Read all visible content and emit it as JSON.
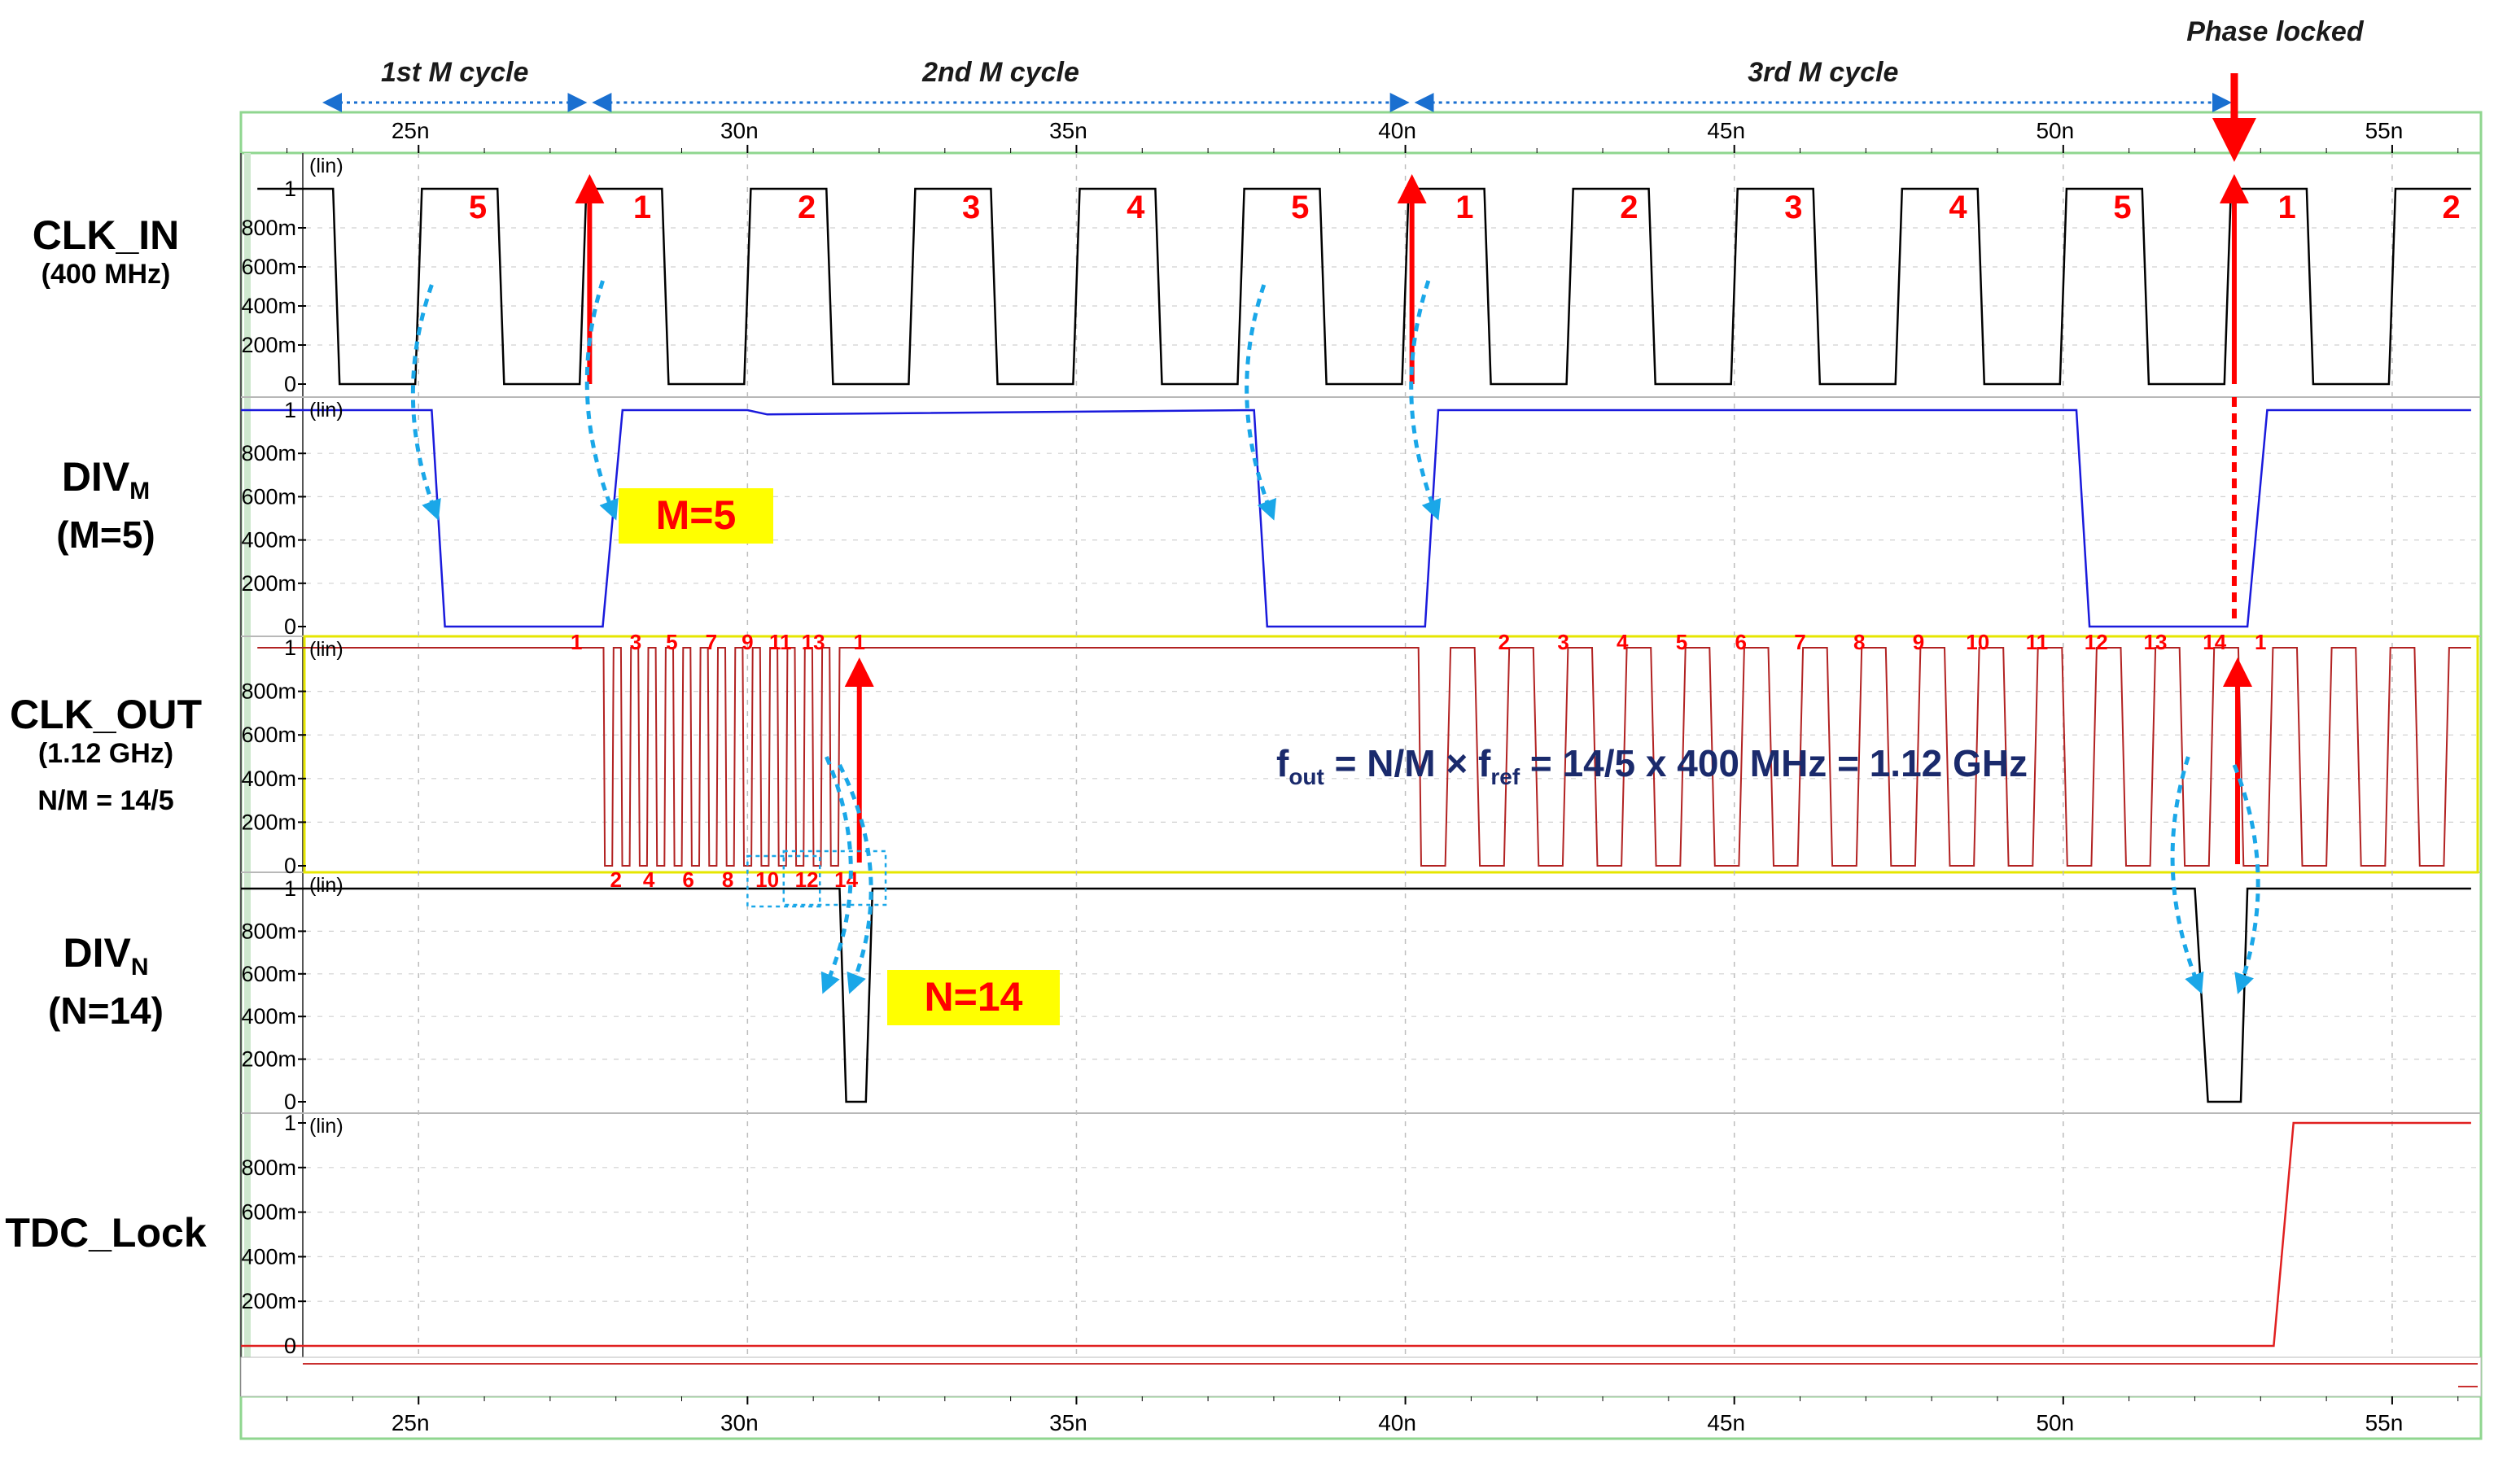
{
  "chart_data": {
    "type": "line",
    "x_unit": "ns",
    "xlim": [
      22.3,
      56.3
    ],
    "x_ticks": [
      25,
      30,
      35,
      40,
      45,
      50,
      55
    ],
    "x_tick_labels": [
      "25n",
      "30n",
      "35n",
      "40n",
      "45n",
      "50n",
      "55n"
    ],
    "y_ticks": [
      0,
      0.2,
      0.4,
      0.6,
      0.8,
      1.0
    ],
    "y_tick_labels": [
      "0",
      "200m",
      "400m",
      "600m",
      "800m",
      "1"
    ],
    "y_scale_tag": "(lin)",
    "grid": true,
    "colors": {
      "clk_in": "#000000",
      "div_m": "#1a1adc",
      "clk_out": "#b22222",
      "div_n": "#000000",
      "tdc_lock": "#e02020",
      "annotation_red": "#ff0000",
      "annotation_blue": "#1aa7e8",
      "cycle_arrow": "#1a6fd0",
      "highlight": "#ffff00",
      "formula": "#1a2a6c",
      "phase_locked": "#1a6fd0",
      "clk_out_border": "#e6e600"
    },
    "signals": [
      {
        "key": "clk_in",
        "name": "CLK_IN",
        "sub": "(400 MHz)",
        "sub2": ""
      },
      {
        "key": "div_m",
        "name": "DIV",
        "subscript": "M",
        "sub": "(M=5)",
        "sub2": ""
      },
      {
        "key": "clk_out",
        "name": "CLK_OUT",
        "sub": "(1.12 GHz)",
        "sub2": "N/M = 14/5"
      },
      {
        "key": "div_n",
        "name": "DIV",
        "subscript": "N",
        "sub": "(N=14)",
        "sub2": ""
      },
      {
        "key": "tdc_lock",
        "name": "TDC_Lock",
        "sub": "",
        "sub2": ""
      }
    ],
    "clk_in": {
      "period_ns": 2.5,
      "first_rise_ns": 25.0,
      "high_ns": 1.25,
      "low": 0.0,
      "high": 1.0
    },
    "div_m": {
      "points": [
        [
          22.3,
          1.0
        ],
        [
          25.2,
          1.0
        ],
        [
          25.4,
          0.0
        ],
        [
          27.8,
          0.0
        ],
        [
          28.1,
          1.0
        ],
        [
          30.0,
          1.0
        ],
        [
          30.3,
          0.98
        ],
        [
          37.7,
          1.0
        ],
        [
          37.9,
          0.0
        ],
        [
          40.3,
          0.0
        ],
        [
          40.5,
          1.0
        ],
        [
          50.2,
          1.0
        ],
        [
          50.4,
          0.0
        ],
        [
          52.8,
          0.0
        ],
        [
          53.1,
          1.0
        ],
        [
          56.2,
          1.0
        ]
      ]
    },
    "clk_out": {
      "burst1": {
        "start_ns": 27.7,
        "end_ns": 31.4,
        "period_ns": 0.2643
      },
      "idle_high_ns": [
        31.4,
        40.2
      ],
      "burst2": {
        "start_ns": 40.2,
        "end_ns": 56.2,
        "period_ns": 0.8929
      },
      "pre_high_ns": [
        22.3,
        27.7
      ]
    },
    "div_n": {
      "points": [
        [
          22.3,
          1.0
        ],
        [
          31.4,
          1.0
        ],
        [
          31.5,
          0.0
        ],
        [
          31.8,
          0.0
        ],
        [
          31.9,
          1.0
        ],
        [
          52.0,
          1.0
        ],
        [
          52.2,
          0.0
        ],
        [
          52.7,
          0.0
        ],
        [
          52.8,
          1.0
        ],
        [
          56.2,
          1.0
        ]
      ]
    },
    "tdc_lock": {
      "points": [
        [
          22.3,
          0.0
        ],
        [
          53.2,
          0.0
        ],
        [
          53.5,
          1.0
        ],
        [
          56.2,
          1.0
        ]
      ]
    },
    "clk_in_counts": [
      {
        "t": 25.9,
        "text": "5"
      },
      {
        "t": 28.4,
        "text": "1"
      },
      {
        "t": 30.9,
        "text": "2"
      },
      {
        "t": 33.4,
        "text": "3"
      },
      {
        "t": 35.9,
        "text": "4"
      },
      {
        "t": 38.4,
        "text": "5"
      },
      {
        "t": 40.9,
        "text": "1"
      },
      {
        "t": 43.4,
        "text": "2"
      },
      {
        "t": 45.9,
        "text": "3"
      },
      {
        "t": 48.4,
        "text": "4"
      },
      {
        "t": 50.9,
        "text": "5"
      },
      {
        "t": 53.4,
        "text": "1"
      },
      {
        "t": 55.9,
        "text": "2"
      }
    ],
    "clk_out_counts_top": [
      {
        "t": 27.4,
        "text": "1"
      },
      {
        "t": 28.3,
        "text": "3"
      },
      {
        "t": 28.85,
        "text": "5"
      },
      {
        "t": 29.45,
        "text": "7"
      },
      {
        "t": 30.0,
        "text": "9"
      },
      {
        "t": 30.5,
        "text": "11"
      },
      {
        "t": 31.0,
        "text": "13"
      },
      {
        "t": 31.7,
        "text": "1"
      },
      {
        "t": 41.5,
        "text": "2"
      },
      {
        "t": 42.4,
        "text": "3"
      },
      {
        "t": 43.3,
        "text": "4"
      },
      {
        "t": 44.2,
        "text": "5"
      },
      {
        "t": 45.1,
        "text": "6"
      },
      {
        "t": 46.0,
        "text": "7"
      },
      {
        "t": 46.9,
        "text": "8"
      },
      {
        "t": 47.8,
        "text": "9"
      },
      {
        "t": 48.7,
        "text": "10"
      },
      {
        "t": 49.6,
        "text": "11"
      },
      {
        "t": 50.5,
        "text": "12"
      },
      {
        "t": 51.4,
        "text": "13"
      },
      {
        "t": 52.3,
        "text": "14"
      },
      {
        "t": 53.0,
        "text": "1"
      }
    ],
    "clk_out_counts_bottom": [
      {
        "t": 28.0,
        "text": "2"
      },
      {
        "t": 28.5,
        "text": "4"
      },
      {
        "t": 29.1,
        "text": "6"
      },
      {
        "t": 29.7,
        "text": "8"
      },
      {
        "t": 30.3,
        "text": "10"
      },
      {
        "t": 30.9,
        "text": "12"
      },
      {
        "t": 31.5,
        "text": "14"
      }
    ],
    "cycle_markers": [
      {
        "from": 23.5,
        "to": 27.6,
        "label": "1st M cycle"
      },
      {
        "from": 27.6,
        "to": 40.1,
        "label": "2nd M cycle"
      },
      {
        "from": 40.1,
        "to": 52.6,
        "label": "3rd M cycle"
      }
    ],
    "phase_locked": {
      "t": 52.6,
      "label": "Phase locked"
    },
    "red_arrows_ns": [
      27.6,
      40.1,
      52.6
    ],
    "boxes": {
      "m": "M=5",
      "n": "N=14"
    },
    "formula": {
      "f": "f",
      "out": "out",
      "eq1": " = N/M × f",
      "ref": "ref",
      "eq2": " = 14/5 x 400 MHz = 1.12 GHz"
    }
  }
}
